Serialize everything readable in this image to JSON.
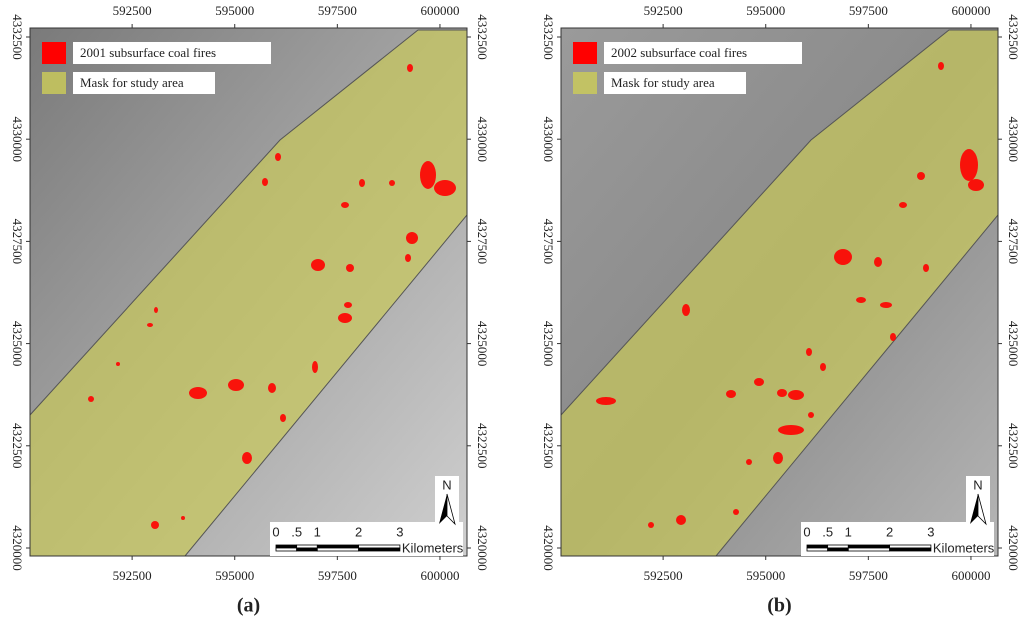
{
  "panels": [
    {
      "caption": "(a)",
      "legend": [
        {
          "label": "2001 subsurface coal fires",
          "color": "#ff0000"
        },
        {
          "label": "Mask for study area",
          "color": "#c9c95a"
        }
      ],
      "xlim": [
        590012,
        600659
      ],
      "ylim": [
        4319804,
        4332720
      ],
      "xticks": [
        592500,
        595000,
        597500,
        600000
      ],
      "yticks": [
        4320000,
        4322500,
        4325000,
        4327500,
        4330000,
        4332500
      ],
      "scale_bar": {
        "ticks": [
          0,
          {
            "value": 0.5,
            "label": ".5"
          },
          1,
          2,
          3
        ],
        "unit": "Kilometers"
      },
      "north": "N"
    },
    {
      "caption": "(b)",
      "legend": [
        {
          "label": "2002 subsurface coal fires",
          "color": "#ff0000"
        },
        {
          "label": "Mask for study area",
          "color": "#c9c95a"
        }
      ],
      "xlim": [
        590012,
        600659
      ],
      "ylim": [
        4319804,
        4332720
      ],
      "xticks": [
        592500,
        595000,
        597500,
        600000
      ],
      "yticks": [
        4320000,
        4322500,
        4325000,
        4327500,
        4330000,
        4332500
      ],
      "scale_bar": {
        "ticks": [
          0,
          {
            "value": 0.5,
            "label": ".5"
          },
          1,
          2,
          3
        ],
        "unit": "Kilometers"
      },
      "north": "N"
    }
  ]
}
